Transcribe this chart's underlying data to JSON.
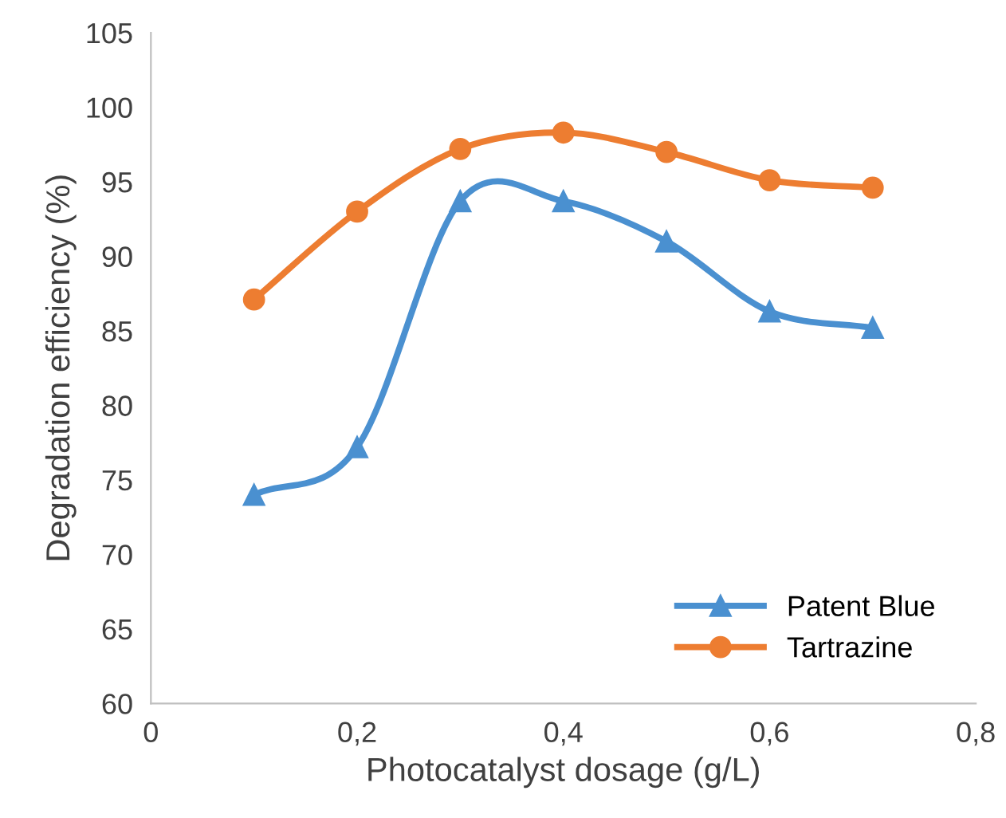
{
  "chart_data": {
    "type": "line",
    "xlabel": "Photocatalyst dosage (g/L)",
    "ylabel": "Degradation efficiency (%)",
    "x": [
      0.1,
      0.2,
      0.3,
      0.4,
      0.5,
      0.6,
      0.7
    ],
    "series": [
      {
        "name": "Patent Blue",
        "color": "#4a90d0",
        "marker": "triangle",
        "values": [
          74.0,
          77.2,
          93.7,
          93.7,
          91.0,
          86.3,
          85.2
        ]
      },
      {
        "name": "Tartrazine",
        "color": "#ed7d31",
        "marker": "circle",
        "values": [
          87.1,
          93.0,
          97.2,
          98.3,
          97.0,
          95.1,
          94.6
        ]
      }
    ],
    "xlim": [
      0,
      0.8
    ],
    "xticks": [
      0,
      {
        "value": 0.2,
        "label": "0,2"
      },
      {
        "value": 0.4,
        "label": "0,4"
      },
      {
        "value": 0.6,
        "label": "0,6"
      },
      {
        "value": 0.8,
        "label": "0,8"
      }
    ],
    "ylim": [
      60,
      105
    ],
    "yticks": [
      60,
      65,
      70,
      75,
      80,
      85,
      90,
      95,
      100,
      105
    ],
    "grid": false,
    "legend": "bottom right",
    "line_style": "solid"
  }
}
